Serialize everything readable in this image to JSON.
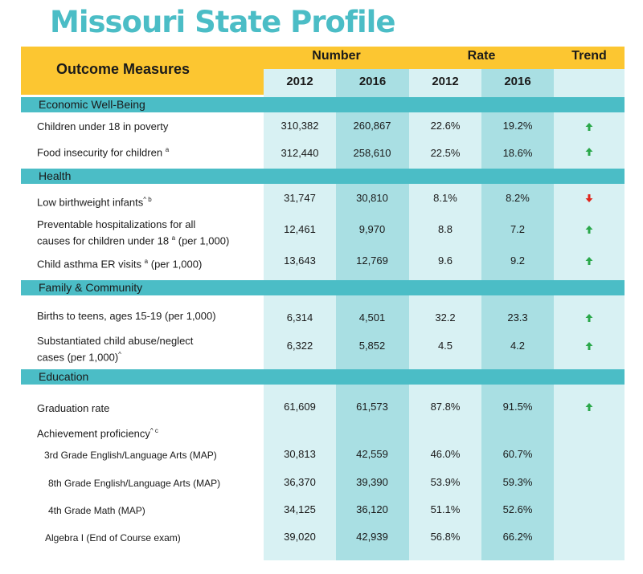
{
  "title": "Missouri State Profile",
  "header": {
    "outcome_measures": "Outcome Measures",
    "number": "Number",
    "rate": "Rate",
    "trend": "Trend",
    "years": [
      "2012",
      "2016",
      "2012",
      "2016"
    ]
  },
  "sections": {
    "economic": "Economic Well-Being",
    "health": "Health",
    "family": "Family & Community",
    "education": "Education"
  },
  "rows": {
    "poverty": {
      "label": "Children under 18 in poverty",
      "values": [
        "310,382",
        "260,867",
        "22.6%",
        "19.2%"
      ],
      "trend": "up"
    },
    "food": {
      "label": "Food insecurity for children",
      "sup": "a",
      "values": [
        "312,440",
        "258,610",
        "22.5%",
        "18.6%"
      ],
      "trend": "up"
    },
    "birthweight": {
      "label": "Low birthweight infants",
      "sup": "^ b",
      "values": [
        "31,747",
        "30,810",
        "8.1%",
        "8.2%"
      ],
      "trend": "down"
    },
    "hospital": {
      "label_line1": "Preventable hospitalizations for all",
      "label_line2": "causes for children under 18",
      "sup": "a",
      "suffix": " (per 1,000)",
      "values": [
        "12,461",
        "9,970",
        "8.8",
        "7.2"
      ],
      "trend": "up"
    },
    "asthma": {
      "label": "Child asthma ER visits",
      "sup": "a",
      "suffix": " (per 1,000)",
      "values": [
        "13,643",
        "12,769",
        "9.6",
        "9.2"
      ],
      "trend": "up"
    },
    "teens": {
      "label": "Births to teens, ages 15-19 (per 1,000)",
      "values": [
        "6,314",
        "4,501",
        "32.2",
        "23.3"
      ],
      "trend": "up"
    },
    "abuse": {
      "label_line1": "Substantiated child abuse/neglect",
      "label_line2": "cases (per 1,000)",
      "sup": "^",
      "values": [
        "6,322",
        "5,852",
        "4.5",
        "4.2"
      ],
      "trend": "up"
    },
    "graduation": {
      "label": "Graduation rate",
      "values": [
        "61,609",
        "61,573",
        "87.8%",
        "91.5%"
      ],
      "trend": "up"
    },
    "achievement": {
      "label": "Achievement proficiency",
      "sup": "^ c"
    },
    "ela3": {
      "label": "3rd Grade English/Language Arts (MAP)",
      "values": [
        "30,813",
        "42,559",
        "46.0%",
        "60.7%"
      ]
    },
    "ela8": {
      "label": "8th Grade English/Language Arts (MAP)",
      "values": [
        "36,370",
        "39,390",
        "53.9%",
        "59.3%"
      ]
    },
    "math4": {
      "label": "4th Grade Math (MAP)",
      "values": [
        "34,125",
        "36,120",
        "51.1%",
        "52.6%"
      ]
    },
    "algebra": {
      "label": "Algebra I (End of Course exam)",
      "values": [
        "39,020",
        "42,939",
        "56.8%",
        "66.2%"
      ]
    }
  },
  "colors": {
    "teal": "#4bbdc6",
    "yellow": "#fcc631",
    "up_arrow": "#2aa84a",
    "down_arrow": "#e0261c"
  },
  "icons": {
    "up": "arrow-up-icon",
    "down": "arrow-down-icon"
  }
}
